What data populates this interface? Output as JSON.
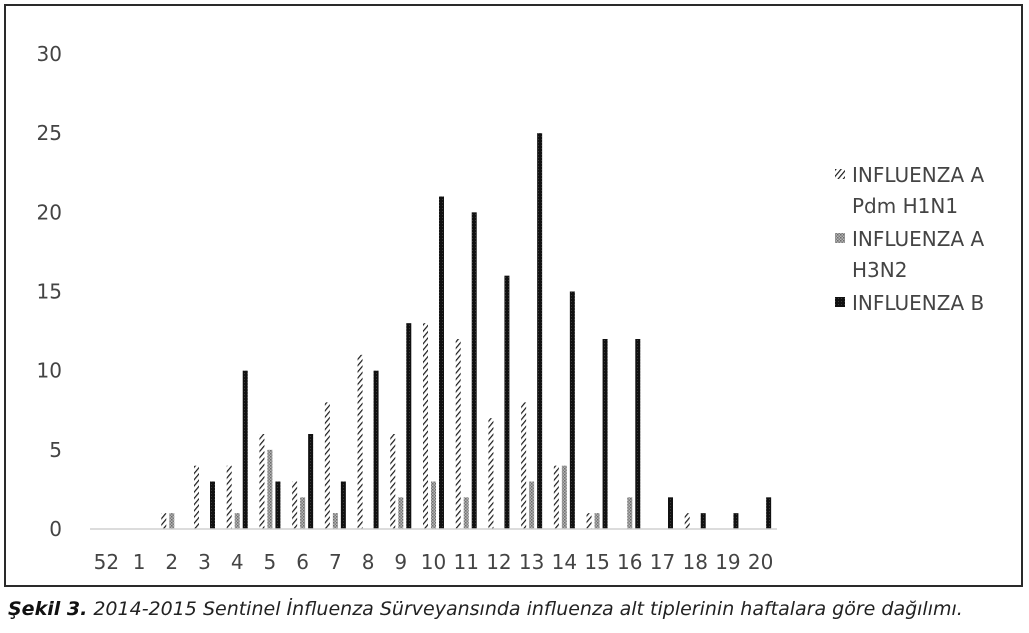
{
  "chart_data": {
    "type": "bar",
    "categories": [
      "52",
      "1",
      "2",
      "3",
      "4",
      "5",
      "6",
      "7",
      "8",
      "9",
      "10",
      "11",
      "12",
      "13",
      "14",
      "15",
      "16",
      "17",
      "18",
      "19",
      "20"
    ],
    "series": [
      {
        "name": "INFLUENZA A Pdm H1N1",
        "name_lines": [
          "INFLUENZA A",
          "Pdm H1N1"
        ],
        "pattern": "diagonal-hatch",
        "color": "#1a1a1a",
        "values": [
          0,
          0,
          1,
          4,
          4,
          6,
          3,
          8,
          11,
          6,
          13,
          12,
          7,
          8,
          4,
          1,
          0,
          0,
          1,
          0,
          0
        ]
      },
      {
        "name": "INFLUENZA A H3N2",
        "name_lines": [
          "INFLUENZA A",
          "H3N2"
        ],
        "pattern": "gray-dots",
        "color": "#8a8a8a",
        "values": [
          0,
          0,
          1,
          0,
          1,
          5,
          2,
          1,
          0,
          2,
          3,
          2,
          0,
          3,
          4,
          1,
          2,
          0,
          0,
          0,
          0
        ]
      },
      {
        "name": "INFLUENZA B",
        "name_lines": [
          "INFLUENZA B"
        ],
        "pattern": "solid-dark",
        "color": "#111111",
        "values": [
          0,
          0,
          0,
          3,
          10,
          3,
          6,
          3,
          10,
          13,
          21,
          20,
          16,
          25,
          15,
          12,
          12,
          2,
          1,
          1,
          2
        ]
      }
    ],
    "yticks": [
      "0",
      "5",
      "10",
      "15",
      "20",
      "25",
      "30"
    ],
    "ylim": [
      0,
      30
    ],
    "grid": false,
    "legend_position": "right"
  },
  "caption": {
    "label": "Şekil 3.",
    "text": " 2014-2015 Sentinel İnfluenza Sürveyansında influenza alt tiplerinin haftalara göre dağılımı."
  }
}
